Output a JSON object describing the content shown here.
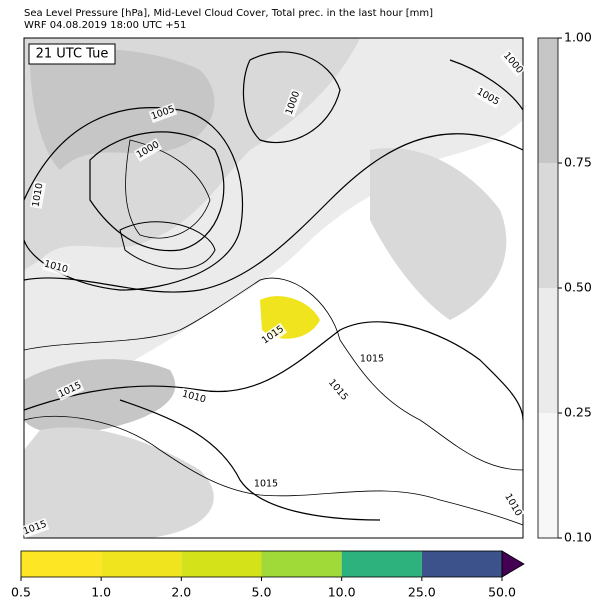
{
  "header": {
    "title": "Sea Level Pressure [hPa], Mid-Level Cloud Cover, Total prec. in the last hour [mm]",
    "subtitle": "WRF 04.08.2019 18:00 UTC +51"
  },
  "map": {
    "time_label": "21 UTC Tue",
    "isobar_labels": [
      1005,
      1000,
      1010,
      1010,
      1000,
      1005,
      1000,
      1015,
      1015,
      1015,
      1010,
      1015,
      1015,
      1015,
      1010
    ]
  },
  "cloud_colorbar": {
    "colors": [
      "#f7f7f7",
      "#ebebeb",
      "#d9d9d9",
      "#c6c6c6"
    ],
    "ticks": [
      {
        "value": 0.1,
        "label": "0.10"
      },
      {
        "value": 0.25,
        "label": "0.25"
      },
      {
        "value": 0.5,
        "label": "0.50"
      },
      {
        "value": 0.75,
        "label": "0.75"
      },
      {
        "value": 1,
        "label": "1.00"
      }
    ]
  },
  "precip_colorbar": {
    "colors": [
      "#fde725",
      "#f0e41e",
      "#d4e21a",
      "#a0da39",
      "#2db27d",
      "#3b528b"
    ],
    "extend_color": "#440154",
    "ticks": [
      0.5,
      {
        "value": 1,
        "label": "1.0"
      },
      {
        "value": 2,
        "label": "2.0"
      },
      {
        "value": 5,
        "label": "5.0"
      },
      {
        "value": 10,
        "label": "10.0"
      },
      {
        "value": 25,
        "label": "25.0"
      },
      {
        "value": 50,
        "label": "50.0"
      }
    ]
  }
}
